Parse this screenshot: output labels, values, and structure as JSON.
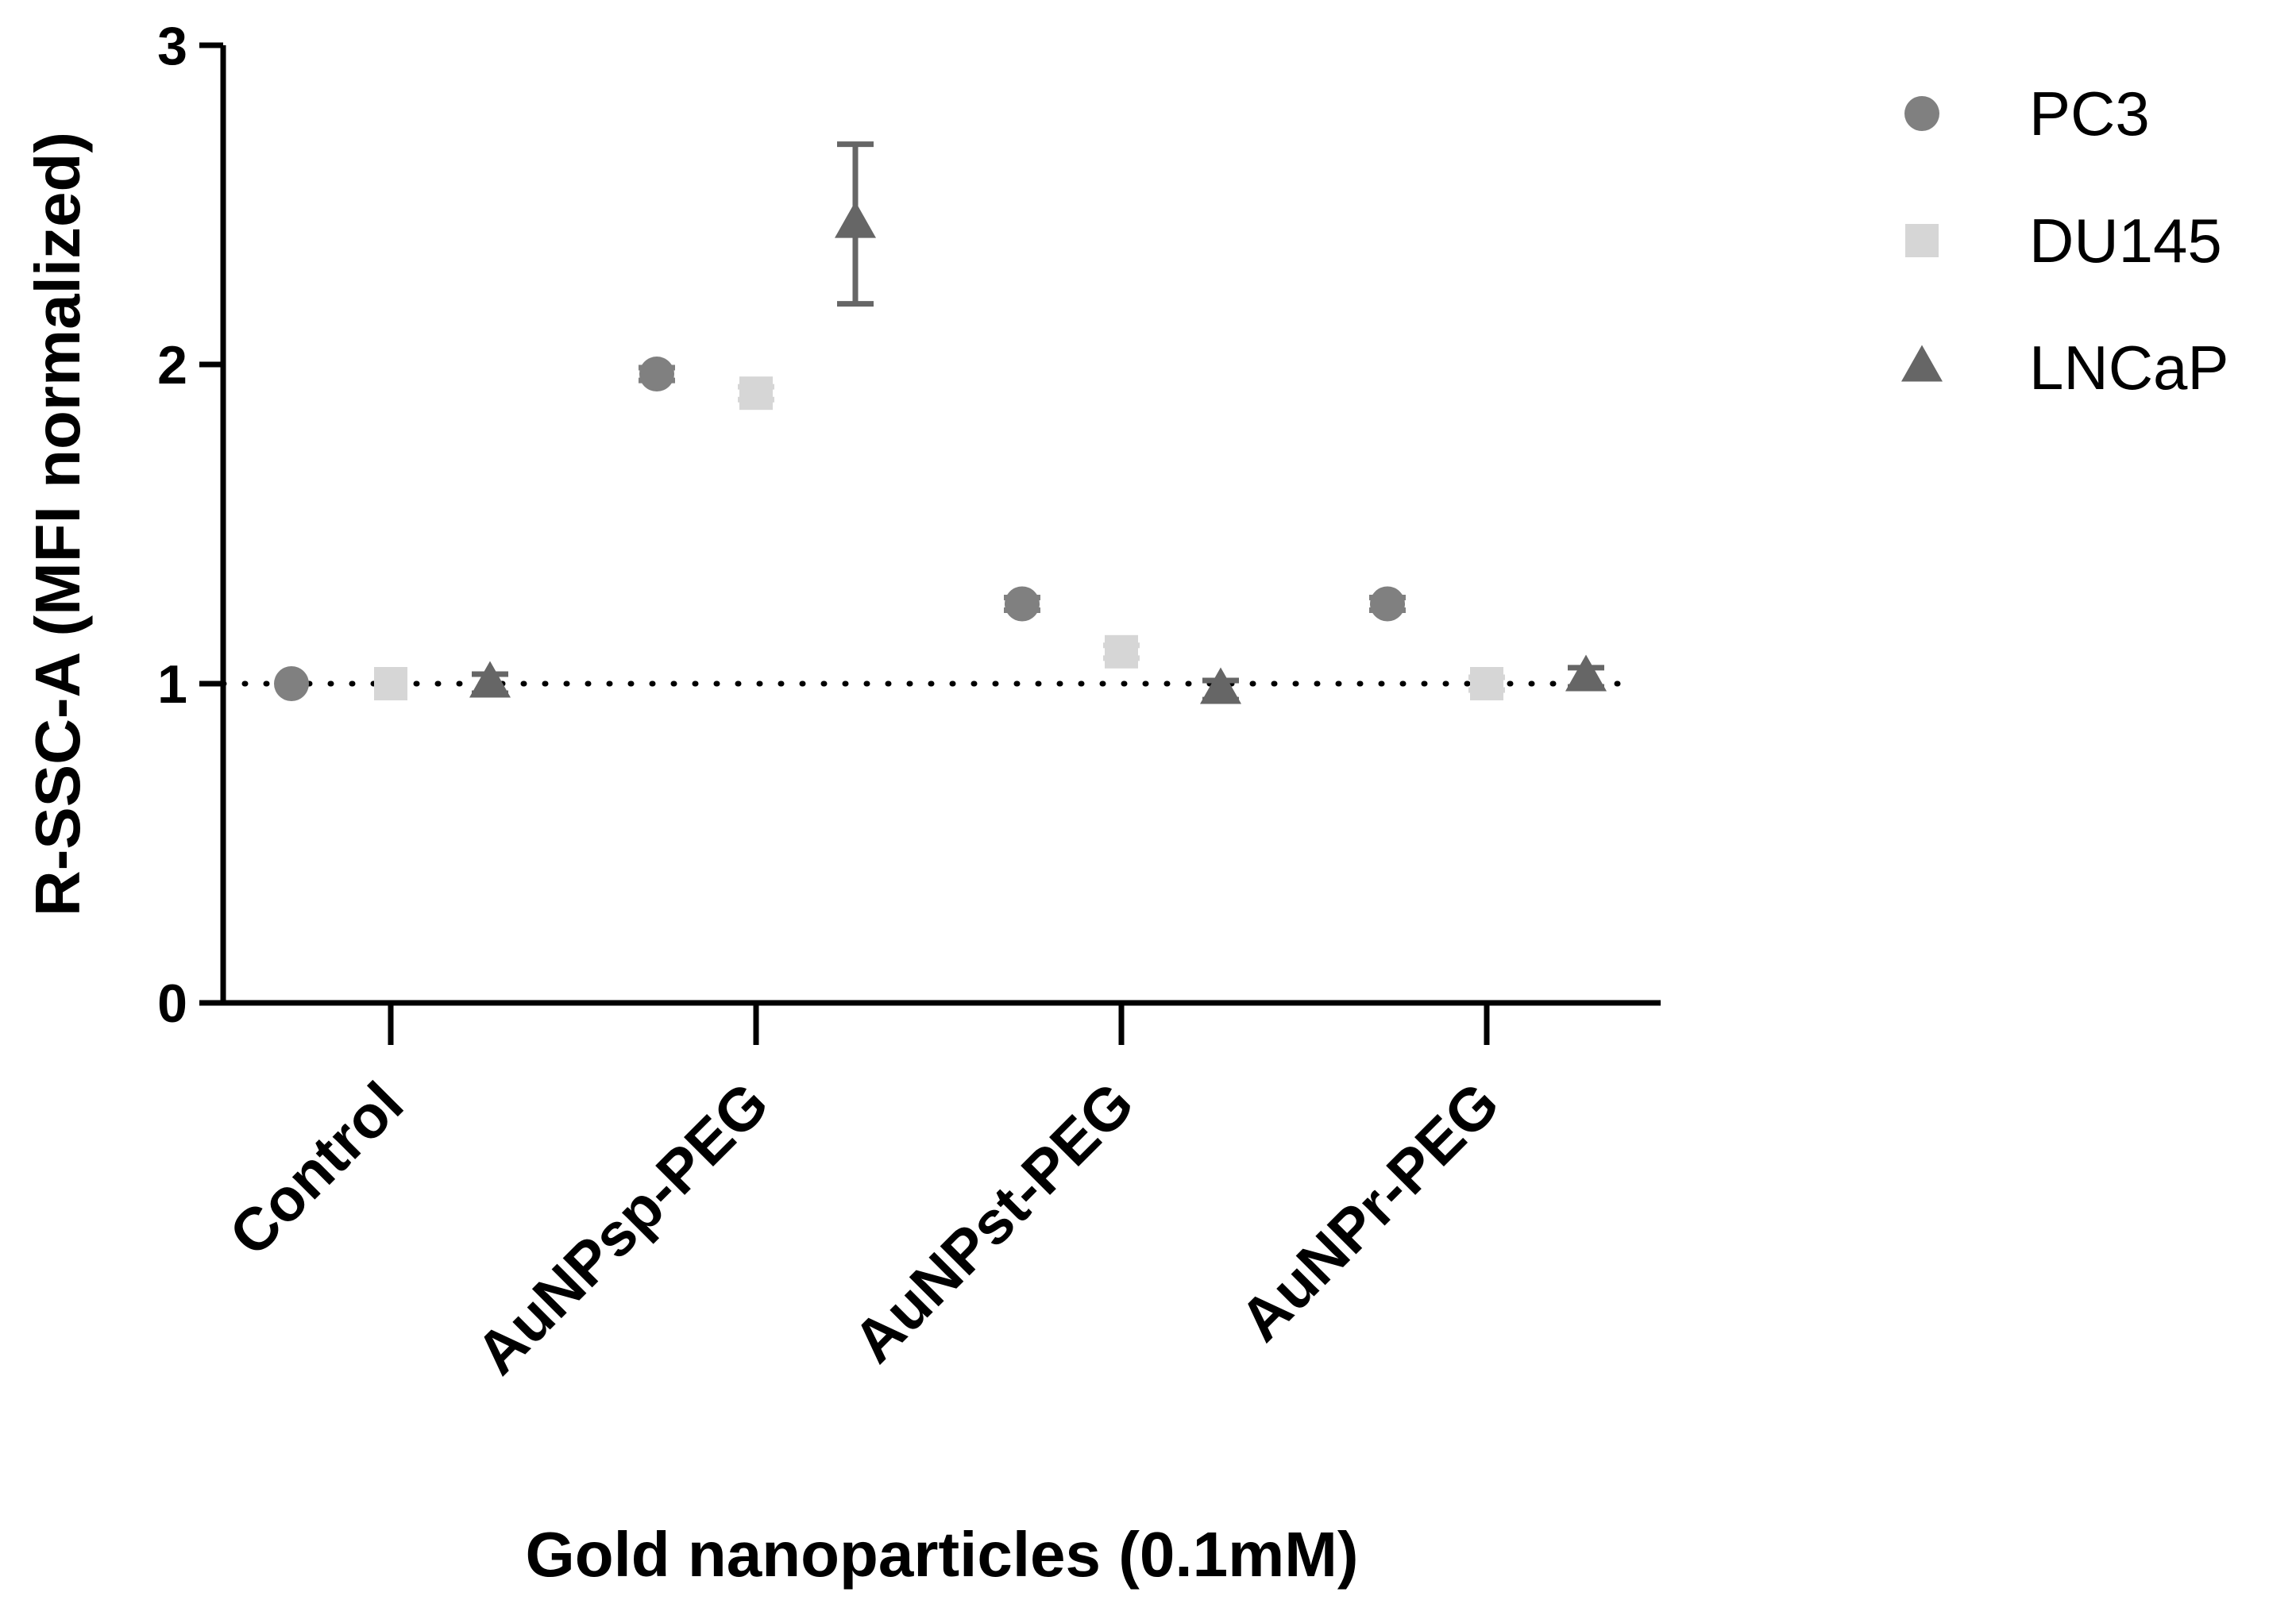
{
  "chart_data": {
    "type": "scatter",
    "xlabel": "Gold nanoparticles (0.1mM)",
    "ylabel": "R-SSC-A (MFI normalized)",
    "categories": [
      "Control",
      "AuNPsp-PEG",
      "AuNPst-PEG",
      "AuNPr-PEG"
    ],
    "ylim": [
      0,
      3
    ],
    "yticks": [
      "0",
      "1",
      "2",
      "3"
    ],
    "reference_line": {
      "y": 1,
      "style": "dotted"
    },
    "series": [
      {
        "name": "PC3",
        "marker": "circle",
        "color": "#808080",
        "values": [
          1.0,
          1.97,
          1.25,
          1.25
        ],
        "errors": [
          0,
          0.02,
          0.02,
          0.02
        ]
      },
      {
        "name": "DU145",
        "marker": "square",
        "color": "#d6d6d6",
        "values": [
          1.0,
          1.91,
          1.1,
          1.0
        ],
        "errors": [
          0,
          0.02,
          0.02,
          0.02
        ]
      },
      {
        "name": "LNCaP",
        "marker": "triangle",
        "color": "#666666",
        "values": [
          1.0,
          2.44,
          0.98,
          1.02
        ],
        "errors": [
          0.03,
          0.25,
          0.03,
          0.03
        ]
      }
    ],
    "legend_position": "top-right"
  }
}
